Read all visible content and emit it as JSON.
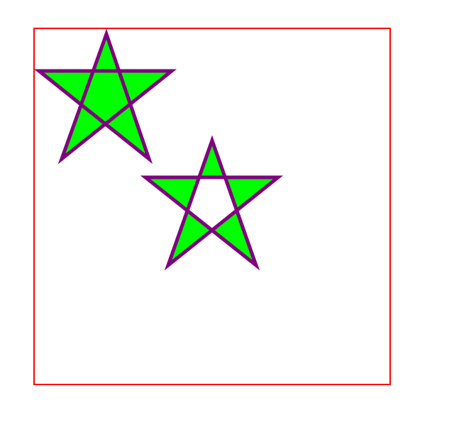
{
  "colors": {
    "background": "#ffffff",
    "frame_stroke": "#ff0000",
    "star_fill": "#00ff00",
    "star_stroke": "#800080"
  },
  "shapes": {
    "frame": {
      "shape": "rectangle",
      "fill": "none"
    },
    "stars": [
      {
        "id": "star-nonzero",
        "fill_rule": "nonzero",
        "description_shape": "five-point star",
        "center_filled": true
      },
      {
        "id": "star-evenodd",
        "fill_rule": "evenodd",
        "description_shape": "five-point star",
        "center_filled": false
      }
    ]
  }
}
